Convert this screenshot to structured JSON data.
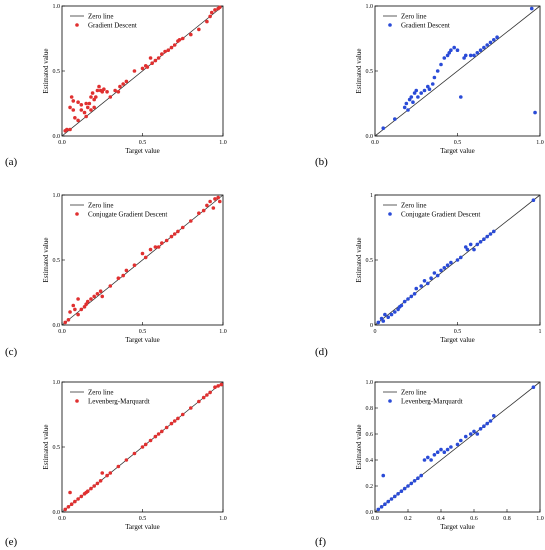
{
  "figure": {
    "panel_letters": [
      "(a)",
      "(b)",
      "(c)",
      "(d)",
      "(e)",
      "(f)"
    ]
  },
  "chart_data": [
    {
      "type": "scatter",
      "panel": "(a)",
      "xlabel": "Target value",
      "ylabel": "Estimated value",
      "xlim": [
        0,
        1
      ],
      "ylim": [
        0,
        1
      ],
      "xticks": [
        "0.0",
        "0.5",
        "1.0"
      ],
      "yticks": [
        "0.0",
        "0.5",
        "1.0"
      ],
      "legend": {
        "line": "Zero line",
        "marker": "Gradient Descent",
        "placement": "top-left"
      },
      "color": "#e03030",
      "series": [
        {
          "name": "Zero line",
          "type": "line",
          "x": [
            0,
            1
          ],
          "y": [
            0,
            1
          ]
        },
        {
          "name": "Gradient Descent",
          "type": "scatter",
          "x": [
            0.02,
            0.03,
            0.05,
            0.05,
            0.06,
            0.07,
            0.07,
            0.08,
            0.1,
            0.1,
            0.12,
            0.12,
            0.14,
            0.15,
            0.15,
            0.16,
            0.17,
            0.18,
            0.18,
            0.19,
            0.2,
            0.2,
            0.21,
            0.22,
            0.23,
            0.24,
            0.25,
            0.26,
            0.28,
            0.3,
            0.33,
            0.35,
            0.36,
            0.38,
            0.4,
            0.45,
            0.5,
            0.52,
            0.53,
            0.55,
            0.56,
            0.58,
            0.6,
            0.62,
            0.64,
            0.66,
            0.68,
            0.7,
            0.72,
            0.73,
            0.75,
            0.8,
            0.85,
            0.9,
            0.92,
            0.93,
            0.95,
            0.97,
            0.98
          ],
          "y": [
            0.04,
            0.05,
            0.05,
            0.22,
            0.3,
            0.27,
            0.2,
            0.14,
            0.12,
            0.26,
            0.24,
            0.2,
            0.18,
            0.15,
            0.25,
            0.22,
            0.25,
            0.2,
            0.3,
            0.33,
            0.28,
            0.22,
            0.3,
            0.35,
            0.38,
            0.35,
            0.34,
            0.36,
            0.34,
            0.3,
            0.35,
            0.34,
            0.38,
            0.4,
            0.42,
            0.5,
            0.52,
            0.54,
            0.53,
            0.6,
            0.56,
            0.58,
            0.6,
            0.63,
            0.65,
            0.66,
            0.68,
            0.7,
            0.73,
            0.74,
            0.75,
            0.78,
            0.82,
            0.88,
            0.92,
            0.95,
            0.97,
            0.98,
            0.99
          ]
        }
      ]
    },
    {
      "type": "scatter",
      "panel": "(b)",
      "xlabel": "Target value",
      "ylabel": "Estimated value",
      "xlim": [
        0,
        1
      ],
      "ylim": [
        0,
        1
      ],
      "xticks": [
        "0.0",
        "0.5",
        "1.0"
      ],
      "yticks": [
        "0.0",
        "0.5",
        "1.0"
      ],
      "legend": {
        "line": "Zero line",
        "marker": "Gradient Descent",
        "placement": "top-left"
      },
      "color": "#2a4bd7",
      "series": [
        {
          "name": "Zero line",
          "type": "line",
          "x": [
            0,
            1
          ],
          "y": [
            0,
            1
          ]
        },
        {
          "name": "Gradient Descent",
          "type": "scatter",
          "x": [
            0.05,
            0.12,
            0.18,
            0.19,
            0.2,
            0.21,
            0.22,
            0.23,
            0.24,
            0.25,
            0.26,
            0.28,
            0.3,
            0.32,
            0.33,
            0.35,
            0.36,
            0.38,
            0.4,
            0.42,
            0.44,
            0.45,
            0.46,
            0.48,
            0.5,
            0.52,
            0.54,
            0.55,
            0.58,
            0.6,
            0.62,
            0.64,
            0.66,
            0.68,
            0.7,
            0.72,
            0.74,
            0.95,
            0.97
          ],
          "y": [
            0.06,
            0.13,
            0.22,
            0.25,
            0.2,
            0.28,
            0.3,
            0.26,
            0.33,
            0.35,
            0.3,
            0.33,
            0.35,
            0.38,
            0.36,
            0.4,
            0.45,
            0.5,
            0.55,
            0.6,
            0.62,
            0.64,
            0.66,
            0.68,
            0.66,
            0.3,
            0.6,
            0.62,
            0.62,
            0.62,
            0.64,
            0.66,
            0.68,
            0.7,
            0.72,
            0.74,
            0.76,
            0.98,
            0.18
          ]
        }
      ]
    },
    {
      "type": "scatter",
      "panel": "(c)",
      "xlabel": "Target value",
      "ylabel": "Estimated value",
      "xlim": [
        0,
        1
      ],
      "ylim": [
        0,
        1
      ],
      "xticks": [
        "0.0",
        "0.5",
        "1.0"
      ],
      "yticks": [
        "0.0",
        "0.5",
        "1.0"
      ],
      "legend": {
        "line": "Zero line",
        "marker": "Conjugate Gradient Descent",
        "placement": "top-left"
      },
      "color": "#e03030",
      "series": [
        {
          "name": "Zero line",
          "type": "line",
          "x": [
            0,
            1
          ],
          "y": [
            0,
            1
          ]
        },
        {
          "name": "Conjugate Gradient Descent",
          "type": "scatter",
          "x": [
            0.02,
            0.04,
            0.05,
            0.07,
            0.08,
            0.1,
            0.1,
            0.12,
            0.14,
            0.15,
            0.16,
            0.18,
            0.2,
            0.22,
            0.24,
            0.25,
            0.3,
            0.35,
            0.38,
            0.4,
            0.45,
            0.5,
            0.52,
            0.55,
            0.58,
            0.6,
            0.62,
            0.65,
            0.68,
            0.7,
            0.72,
            0.75,
            0.8,
            0.85,
            0.88,
            0.9,
            0.92,
            0.94,
            0.95,
            0.97,
            0.98
          ],
          "y": [
            0.02,
            0.04,
            0.1,
            0.15,
            0.12,
            0.08,
            0.2,
            0.12,
            0.14,
            0.16,
            0.18,
            0.2,
            0.22,
            0.24,
            0.26,
            0.22,
            0.3,
            0.36,
            0.38,
            0.42,
            0.46,
            0.55,
            0.52,
            0.58,
            0.6,
            0.6,
            0.63,
            0.65,
            0.68,
            0.7,
            0.72,
            0.75,
            0.8,
            0.86,
            0.88,
            0.92,
            0.95,
            0.9,
            0.97,
            0.98,
            0.95
          ]
        }
      ]
    },
    {
      "type": "scatter",
      "panel": "(d)",
      "xlabel": "Target value",
      "ylabel": "Estimated value",
      "xlim": [
        0,
        1
      ],
      "ylim": [
        0,
        1
      ],
      "xticks": [
        "0",
        "0.5",
        "1"
      ],
      "yticks": [
        "0",
        "0.5",
        "1"
      ],
      "legend": {
        "line": "Zero line",
        "marker": "Conjugate Gradient Descent",
        "placement": "top-left"
      },
      "color": "#2a4bd7",
      "series": [
        {
          "name": "Zero line",
          "type": "line",
          "x": [
            0,
            1
          ],
          "y": [
            0,
            1
          ]
        },
        {
          "name": "Conjugate Gradient Descent",
          "type": "scatter",
          "x": [
            0.02,
            0.04,
            0.05,
            0.06,
            0.08,
            0.1,
            0.12,
            0.14,
            0.15,
            0.16,
            0.18,
            0.2,
            0.22,
            0.24,
            0.25,
            0.28,
            0.3,
            0.32,
            0.34,
            0.36,
            0.38,
            0.4,
            0.42,
            0.44,
            0.46,
            0.5,
            0.52,
            0.55,
            0.56,
            0.58,
            0.6,
            0.62,
            0.64,
            0.66,
            0.68,
            0.7,
            0.72,
            0.96
          ],
          "y": [
            0.02,
            0.05,
            0.03,
            0.08,
            0.06,
            0.08,
            0.1,
            0.12,
            0.14,
            0.15,
            0.18,
            0.2,
            0.22,
            0.24,
            0.28,
            0.3,
            0.34,
            0.32,
            0.36,
            0.4,
            0.38,
            0.42,
            0.44,
            0.46,
            0.48,
            0.5,
            0.52,
            0.6,
            0.58,
            0.62,
            0.58,
            0.62,
            0.64,
            0.66,
            0.68,
            0.7,
            0.72,
            0.96
          ]
        }
      ]
    },
    {
      "type": "scatter",
      "panel": "(e)",
      "xlabel": "Target value",
      "ylabel": "Estimated value",
      "xlim": [
        0,
        1
      ],
      "ylim": [
        0,
        1
      ],
      "xticks": [
        "0.0",
        "0.5",
        "1.0"
      ],
      "yticks": [
        "0.0",
        "0.5",
        "1.0"
      ],
      "legend": {
        "line": "Zero line",
        "marker": "Levenberg-Marquardt",
        "placement": "top-left"
      },
      "color": "#e03030",
      "series": [
        {
          "name": "Zero line",
          "type": "line",
          "x": [
            0,
            1
          ],
          "y": [
            0,
            1
          ]
        },
        {
          "name": "Levenberg-Marquardt",
          "type": "scatter",
          "x": [
            0.02,
            0.04,
            0.05,
            0.06,
            0.08,
            0.1,
            0.12,
            0.14,
            0.15,
            0.16,
            0.18,
            0.2,
            0.22,
            0.24,
            0.25,
            0.28,
            0.3,
            0.35,
            0.4,
            0.45,
            0.5,
            0.52,
            0.55,
            0.58,
            0.6,
            0.62,
            0.65,
            0.68,
            0.7,
            0.72,
            0.75,
            0.8,
            0.85,
            0.88,
            0.9,
            0.92,
            0.95,
            0.97,
            0.99
          ],
          "y": [
            0.02,
            0.04,
            0.15,
            0.06,
            0.08,
            0.1,
            0.12,
            0.14,
            0.15,
            0.16,
            0.18,
            0.2,
            0.22,
            0.24,
            0.3,
            0.28,
            0.3,
            0.35,
            0.4,
            0.45,
            0.5,
            0.52,
            0.55,
            0.58,
            0.6,
            0.62,
            0.65,
            0.68,
            0.7,
            0.72,
            0.75,
            0.8,
            0.85,
            0.88,
            0.9,
            0.92,
            0.96,
            0.97,
            0.98
          ]
        }
      ]
    },
    {
      "type": "scatter",
      "panel": "(f)",
      "xlabel": "Target value",
      "ylabel": "Estimated value",
      "xlim": [
        0,
        1
      ],
      "ylim": [
        0,
        1
      ],
      "xticks": [
        "0.0",
        "0.2",
        "0.4",
        "0.6",
        "0.8",
        "1.0"
      ],
      "yticks": [
        "0.0",
        "0.2",
        "0.4",
        "0.6",
        "0.8",
        "1.0"
      ],
      "legend": {
        "line": "Zero line",
        "marker": "Levenberg-Marquardt",
        "placement": "top-left"
      },
      "color": "#2a4bd7",
      "series": [
        {
          "name": "Zero line",
          "type": "line",
          "x": [
            0,
            1
          ],
          "y": [
            0,
            1
          ]
        },
        {
          "name": "Levenberg-Marquardt",
          "type": "scatter",
          "x": [
            0.02,
            0.04,
            0.05,
            0.06,
            0.08,
            0.1,
            0.12,
            0.14,
            0.16,
            0.18,
            0.2,
            0.22,
            0.24,
            0.26,
            0.28,
            0.3,
            0.32,
            0.34,
            0.36,
            0.38,
            0.4,
            0.42,
            0.44,
            0.46,
            0.5,
            0.52,
            0.55,
            0.58,
            0.6,
            0.62,
            0.64,
            0.66,
            0.68,
            0.7,
            0.72,
            0.96
          ],
          "y": [
            0.02,
            0.04,
            0.28,
            0.06,
            0.08,
            0.1,
            0.12,
            0.14,
            0.16,
            0.18,
            0.2,
            0.22,
            0.24,
            0.26,
            0.28,
            0.4,
            0.42,
            0.4,
            0.44,
            0.46,
            0.48,
            0.46,
            0.48,
            0.5,
            0.52,
            0.55,
            0.58,
            0.6,
            0.62,
            0.6,
            0.64,
            0.66,
            0.68,
            0.7,
            0.74,
            0.96
          ]
        }
      ]
    }
  ]
}
